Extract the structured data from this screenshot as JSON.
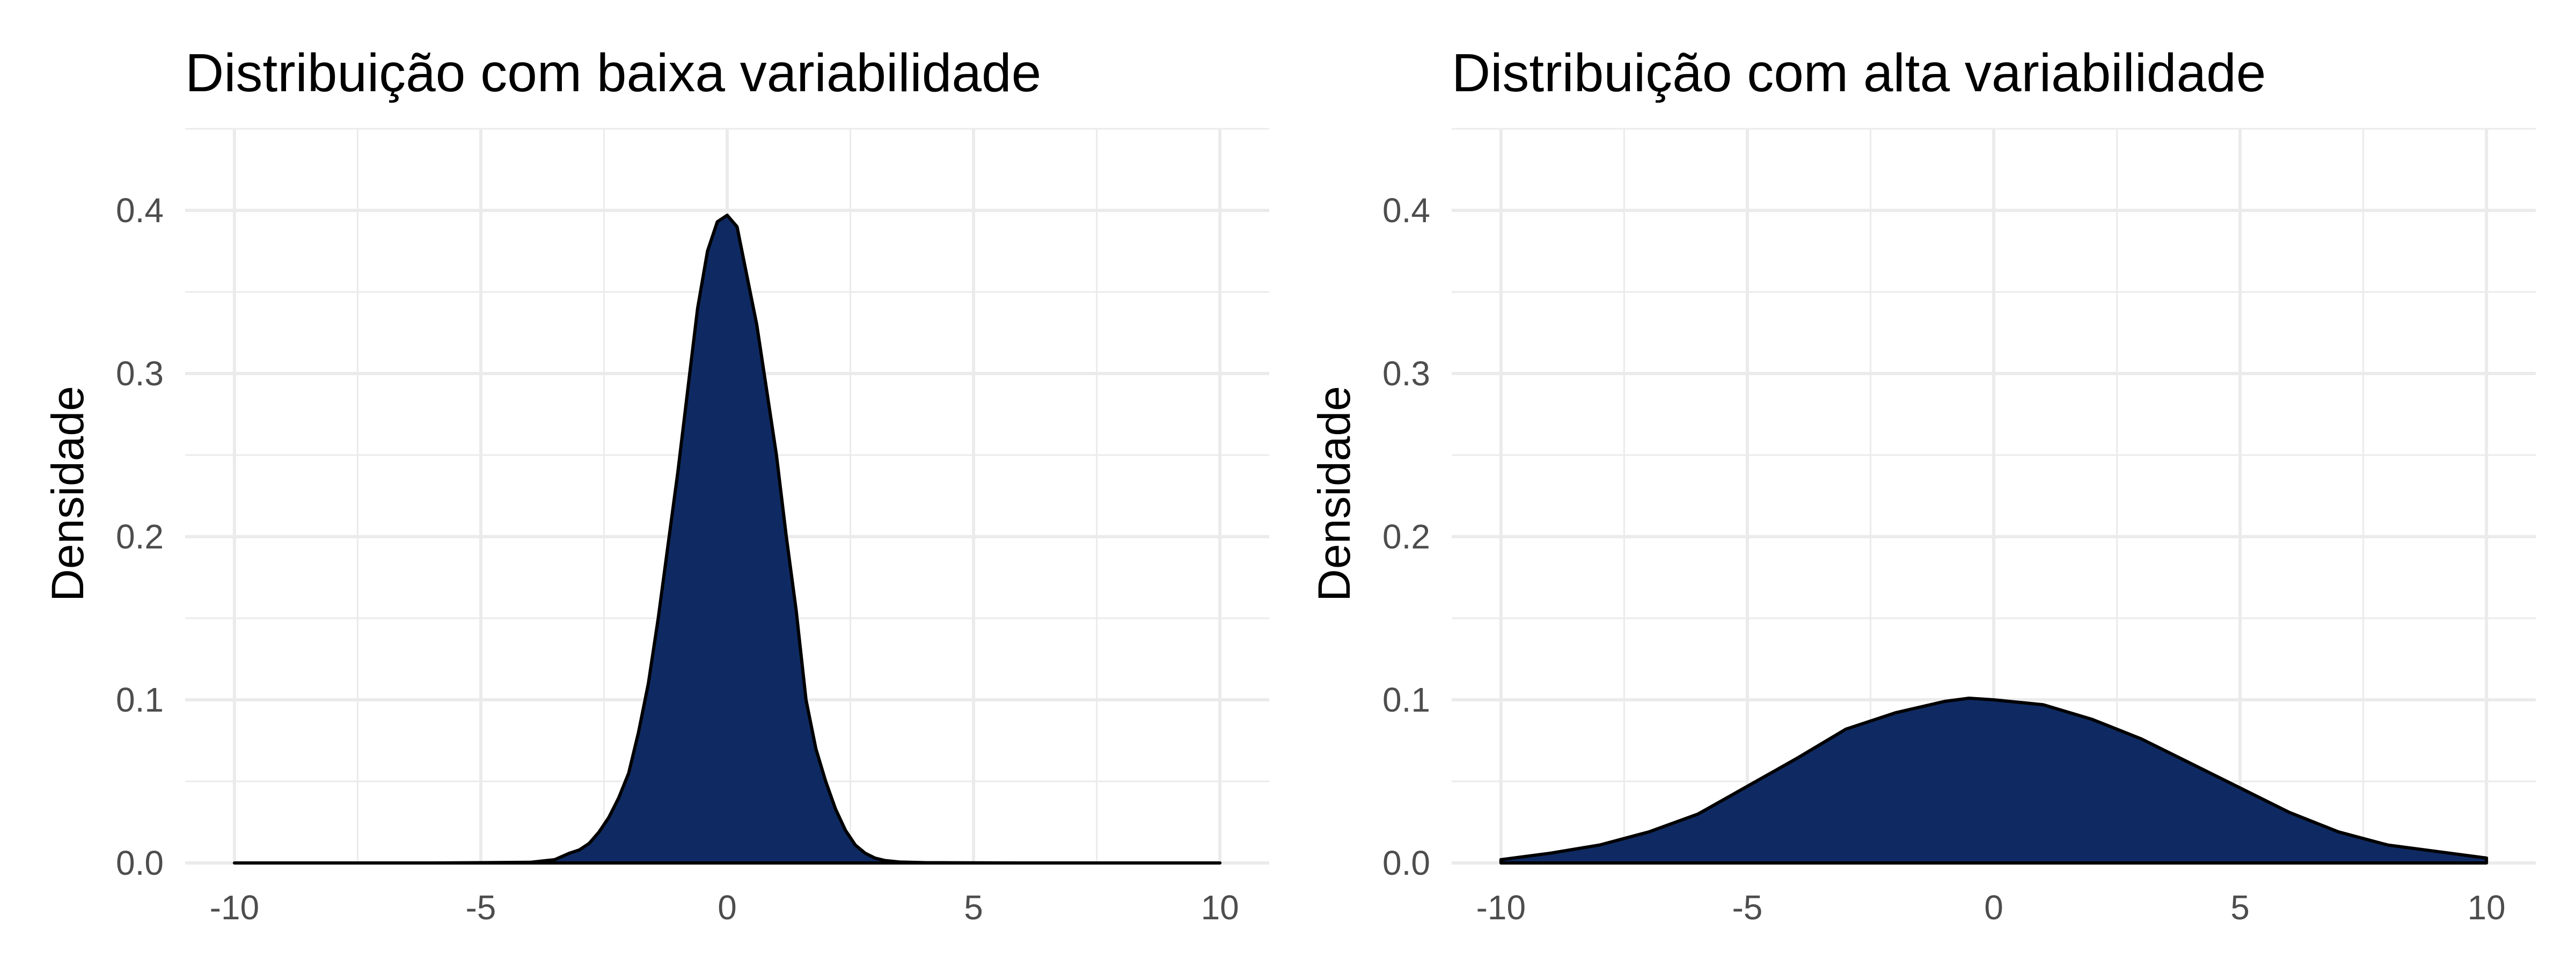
{
  "chart_data": [
    {
      "type": "area",
      "title": "Distribuição com baixa variabilidade",
      "xlabel": "",
      "ylabel": "Densidade",
      "xlim": [
        -11,
        11
      ],
      "ylim": [
        0,
        0.45
      ],
      "x_ticks": [
        -10,
        -5,
        0,
        5,
        10
      ],
      "x_tick_labels": [
        "-10",
        "-5",
        "0",
        "5",
        "10"
      ],
      "y_ticks": [
        0.0,
        0.1,
        0.2,
        0.3,
        0.4
      ],
      "y_tick_labels": [
        "0.0",
        "0.1",
        "0.2",
        "0.3",
        "0.4"
      ],
      "grid": true,
      "legend": "none",
      "fill_color": "#0f2a62",
      "line_color": "#000000",
      "series": [
        {
          "x": [
            -10,
            -6,
            -4,
            -3.5,
            -3.2,
            -3,
            -2.8,
            -2.6,
            -2.4,
            -2.2,
            -2,
            -1.8,
            -1.6,
            -1.4,
            -1.2,
            -1,
            -0.8,
            -0.6,
            -0.4,
            -0.2,
            0,
            0.2,
            0.4,
            0.6,
            0.8,
            1,
            1.2,
            1.4,
            1.6,
            1.8,
            2,
            2.2,
            2.4,
            2.6,
            2.8,
            3,
            3.2,
            3.5,
            4,
            6,
            10
          ],
          "y": [
            0,
            0,
            0.0004,
            0.002,
            0.006,
            0.008,
            0.012,
            0.019,
            0.028,
            0.04,
            0.055,
            0.08,
            0.11,
            0.15,
            0.195,
            0.24,
            0.29,
            0.34,
            0.375,
            0.393,
            0.397,
            0.39,
            0.36,
            0.33,
            0.29,
            0.25,
            0.2,
            0.155,
            0.1,
            0.07,
            0.05,
            0.033,
            0.02,
            0.011,
            0.006,
            0.003,
            0.0015,
            0.0006,
            0.0002,
            0,
            0
          ]
        }
      ]
    },
    {
      "type": "area",
      "title": "Distribuição com alta variabilidade",
      "xlabel": "",
      "ylabel": "Densidade",
      "xlim": [
        -11,
        11
      ],
      "ylim": [
        0,
        0.45
      ],
      "x_ticks": [
        -10,
        -5,
        0,
        5,
        10
      ],
      "x_tick_labels": [
        "-10",
        "-5",
        "0",
        "5",
        "10"
      ],
      "y_ticks": [
        0.0,
        0.1,
        0.2,
        0.3,
        0.4
      ],
      "y_tick_labels": [
        "0.0",
        "0.1",
        "0.2",
        "0.3",
        "0.4"
      ],
      "grid": true,
      "legend": "none",
      "fill_color": "#0f2a62",
      "line_color": "#000000",
      "series": [
        {
          "x": [
            -10,
            -9,
            -8,
            -7,
            -6,
            -5,
            -4,
            -3,
            -2,
            -1,
            -0.5,
            0,
            1,
            2,
            3,
            4,
            5,
            6,
            7,
            8,
            9,
            10
          ],
          "y": [
            0.002,
            0.006,
            0.011,
            0.019,
            0.03,
            0.047,
            0.064,
            0.082,
            0.092,
            0.099,
            0.101,
            0.1,
            0.097,
            0.088,
            0.076,
            0.061,
            0.046,
            0.031,
            0.019,
            0.011,
            0.007,
            0.003
          ]
        }
      ]
    }
  ]
}
